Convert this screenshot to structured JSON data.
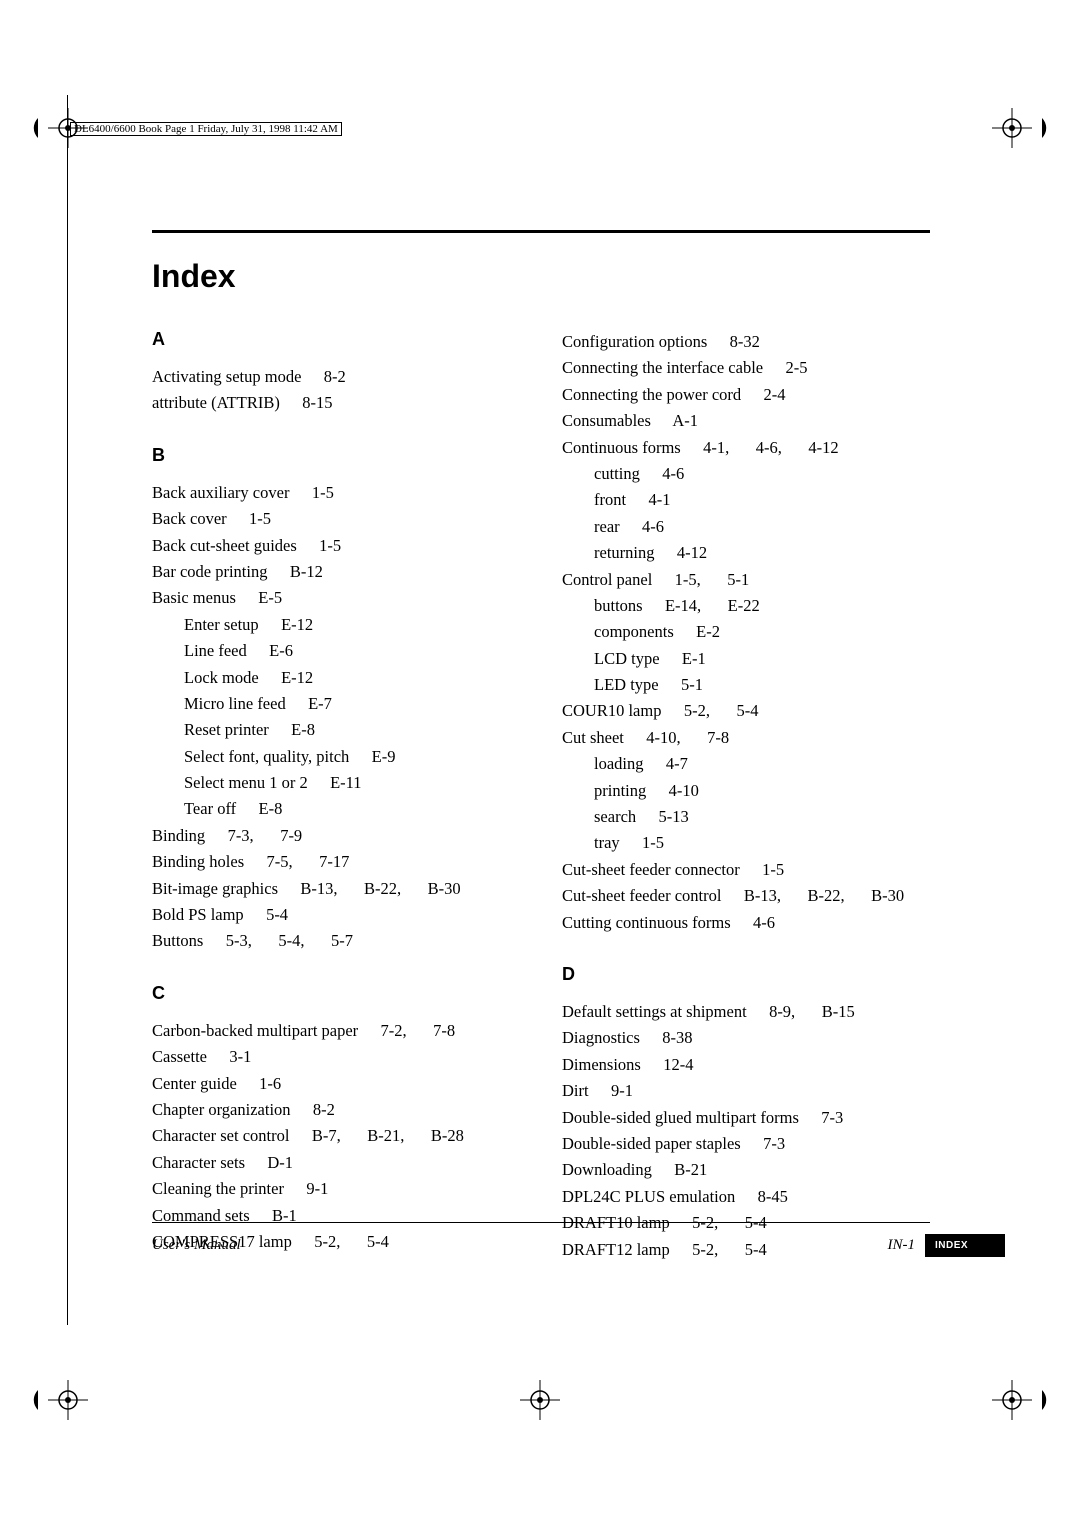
{
  "header": {
    "text": "DL6400/6600 Book  Page 1  Friday, July 31, 1998  11:42 AM"
  },
  "title": "Index",
  "footer": {
    "left": "User's Manual",
    "page": "IN-1",
    "tab": "INDEX"
  },
  "colors": {
    "text": "#000000",
    "background": "#ffffff",
    "tab_bg": "#000000",
    "tab_fg": "#ffffff"
  },
  "typography": {
    "title_font": "Arial",
    "title_size_pt": 24,
    "title_weight": 700,
    "letter_font": "Arial",
    "letter_size_pt": 13,
    "letter_weight": 700,
    "body_font": "Times New Roman",
    "body_size_pt": 12,
    "footer_size_pt": 11
  },
  "index": {
    "left_sections": [
      {
        "letter": "A",
        "entries": [
          {
            "label": "Activating setup mode",
            "refs": [
              "8-2"
            ]
          },
          {
            "label": "attribute (ATTRIB)",
            "refs": [
              "8-15"
            ]
          }
        ]
      },
      {
        "letter": "B",
        "entries": [
          {
            "label": "Back auxiliary cover",
            "refs": [
              "1-5"
            ]
          },
          {
            "label": "Back cover",
            "refs": [
              "1-5"
            ]
          },
          {
            "label": "Back cut-sheet guides",
            "refs": [
              "1-5"
            ]
          },
          {
            "label": "Bar code printing",
            "refs": [
              "B-12"
            ]
          },
          {
            "label": "Basic menus",
            "refs": [
              "E-5"
            ]
          },
          {
            "label": "Enter setup",
            "refs": [
              "E-12"
            ],
            "sub": true
          },
          {
            "label": "Line feed",
            "refs": [
              "E-6"
            ],
            "sub": true
          },
          {
            "label": "Lock mode",
            "refs": [
              "E-12"
            ],
            "sub": true
          },
          {
            "label": "Micro line feed",
            "refs": [
              "E-7"
            ],
            "sub": true
          },
          {
            "label": "Reset printer",
            "refs": [
              "E-8"
            ],
            "sub": true
          },
          {
            "label": "Select font, quality, pitch",
            "refs": [
              "E-9"
            ],
            "sub": true
          },
          {
            "label": "Select menu 1 or 2",
            "refs": [
              "E-11"
            ],
            "sub": true
          },
          {
            "label": "Tear off",
            "refs": [
              "E-8"
            ],
            "sub": true
          },
          {
            "label": "Binding",
            "refs": [
              "7-3,",
              "7-9"
            ]
          },
          {
            "label": "Binding holes",
            "refs": [
              "7-5,",
              "7-17"
            ]
          },
          {
            "label": "Bit-image graphics",
            "refs": [
              "B-13,",
              "B-22,",
              "B-30"
            ]
          },
          {
            "label": "Bold PS lamp",
            "refs": [
              "5-4"
            ]
          },
          {
            "label": "Buttons",
            "refs": [
              "5-3,",
              "5-4,",
              "5-7"
            ]
          }
        ]
      },
      {
        "letter": "C",
        "entries": [
          {
            "label": "Carbon-backed multipart paper",
            "refs": [
              "7-2,",
              "7-8"
            ]
          },
          {
            "label": "Cassette",
            "refs": [
              "3-1"
            ]
          },
          {
            "label": "Center guide",
            "refs": [
              "1-6"
            ]
          },
          {
            "label": "Chapter organization",
            "refs": [
              "8-2"
            ]
          },
          {
            "label": "Character set control",
            "refs": [
              "B-7,",
              "B-21,",
              "B-28"
            ]
          },
          {
            "label": "Character sets",
            "refs": [
              "D-1"
            ]
          },
          {
            "label": "Cleaning the printer",
            "refs": [
              "9-1"
            ]
          },
          {
            "label": "Command sets",
            "refs": [
              "B-1"
            ]
          },
          {
            "label": "COMPRESS17 lamp",
            "refs": [
              "5-2,",
              "5-4"
            ]
          }
        ]
      }
    ],
    "right_sections": [
      {
        "letter": "",
        "entries": [
          {
            "label": "Configuration options",
            "refs": [
              "8-32"
            ]
          },
          {
            "label": "Connecting the interface cable",
            "refs": [
              "2-5"
            ]
          },
          {
            "label": "Connecting the power cord",
            "refs": [
              "2-4"
            ]
          },
          {
            "label": "Consumables",
            "refs": [
              "A-1"
            ]
          },
          {
            "label": "Continuous forms",
            "refs": [
              "4-1,",
              "4-6,",
              "4-12"
            ]
          },
          {
            "label": "cutting",
            "refs": [
              "4-6"
            ],
            "sub": true
          },
          {
            "label": "front",
            "refs": [
              "4-1"
            ],
            "sub": true
          },
          {
            "label": "rear",
            "refs": [
              "4-6"
            ],
            "sub": true
          },
          {
            "label": "returning",
            "refs": [
              "4-12"
            ],
            "sub": true
          },
          {
            "label": "Control panel",
            "refs": [
              "1-5,",
              "5-1"
            ]
          },
          {
            "label": "buttons",
            "refs": [
              "E-14,",
              "E-22"
            ],
            "sub": true
          },
          {
            "label": "components",
            "refs": [
              "E-2"
            ],
            "sub": true
          },
          {
            "label": "LCD type",
            "refs": [
              "E-1"
            ],
            "sub": true
          },
          {
            "label": "LED type",
            "refs": [
              "5-1"
            ],
            "sub": true
          },
          {
            "label": "COUR10 lamp",
            "refs": [
              "5-2,",
              "5-4"
            ]
          },
          {
            "label": "Cut sheet",
            "refs": [
              "4-10,",
              "7-8"
            ]
          },
          {
            "label": "loading",
            "refs": [
              "4-7"
            ],
            "sub": true
          },
          {
            "label": "printing",
            "refs": [
              "4-10"
            ],
            "sub": true
          },
          {
            "label": "search",
            "refs": [
              "5-13"
            ],
            "sub": true
          },
          {
            "label": "tray",
            "refs": [
              "1-5"
            ],
            "sub": true
          },
          {
            "label": "Cut-sheet feeder connector",
            "refs": [
              "1-5"
            ]
          },
          {
            "label": "Cut-sheet feeder control",
            "refs": [
              "B-13,",
              "B-22,",
              "B-30"
            ]
          },
          {
            "label": "Cutting continuous forms",
            "refs": [
              "4-6"
            ]
          }
        ]
      },
      {
        "letter": "D",
        "entries": [
          {
            "label": "Default settings at shipment",
            "refs": [
              "8-9,",
              "B-15"
            ]
          },
          {
            "label": "Diagnostics",
            "refs": [
              "8-38"
            ]
          },
          {
            "label": "Dimensions",
            "refs": [
              "12-4"
            ]
          },
          {
            "label": "Dirt",
            "refs": [
              "9-1"
            ]
          },
          {
            "label": "Double-sided glued multipart forms",
            "refs": [
              "7-3"
            ]
          },
          {
            "label": "Double-sided paper staples",
            "refs": [
              "7-3"
            ]
          },
          {
            "label": "Downloading",
            "refs": [
              "B-21"
            ]
          },
          {
            "label": "DPL24C PLUS emulation",
            "refs": [
              "8-45"
            ]
          },
          {
            "label": "DRAFT10 lamp",
            "refs": [
              "5-2,",
              "5-4"
            ]
          },
          {
            "label": "DRAFT12 lamp",
            "refs": [
              "5-2,",
              "5-4"
            ]
          }
        ]
      }
    ]
  }
}
